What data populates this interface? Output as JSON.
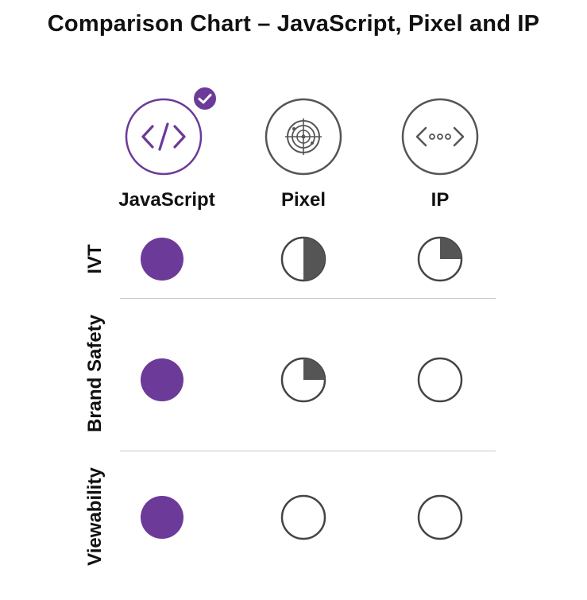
{
  "title": "Comparison Chart – JavaScript, Pixel and IP",
  "colors": {
    "accent": "#6c3a98",
    "dark": "#555555",
    "outline": "#444444",
    "divider": "#c8c8c8"
  },
  "columns": [
    {
      "label": "JavaScript",
      "icon": "code-brackets-icon",
      "selected": true,
      "badge": "checkmark-badge-icon"
    },
    {
      "label": "Pixel",
      "icon": "radar-target-icon",
      "selected": false
    },
    {
      "label": "IP",
      "icon": "network-dots-icon",
      "selected": false
    }
  ],
  "rows": [
    {
      "label": "IVT",
      "ratings": [
        1,
        0.5,
        0.25
      ]
    },
    {
      "label": "Brand Safety",
      "ratings": [
        1,
        0.25,
        0
      ]
    },
    {
      "label": "Viewability",
      "ratings": [
        1,
        0,
        0
      ]
    }
  ]
}
